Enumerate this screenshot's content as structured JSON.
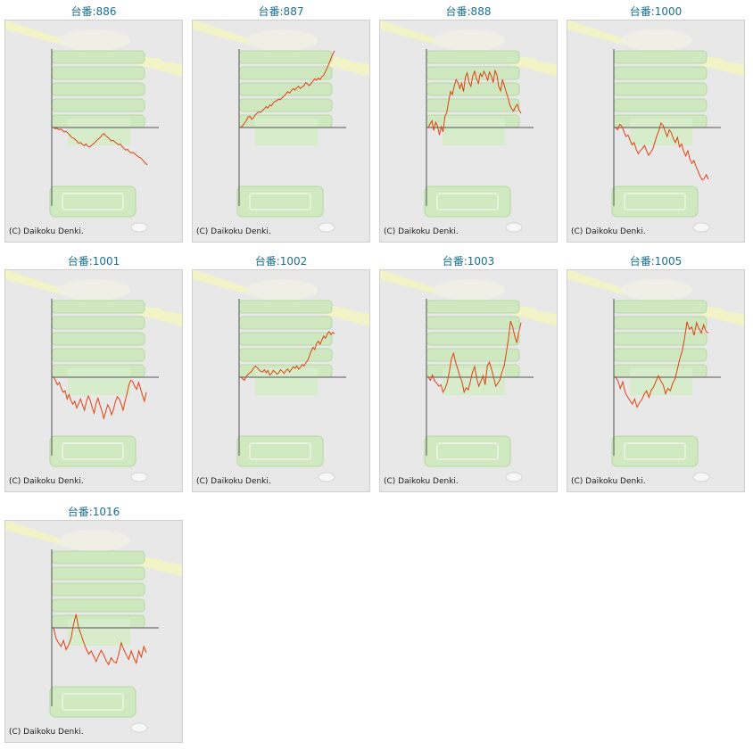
{
  "graphs": [
    {
      "title": "台番:886",
      "copyright": "(C) Daikoku Denki.",
      "series": [
        0,
        -3,
        -2,
        -6,
        -4,
        -8,
        -12,
        -10,
        -15,
        -20,
        -26,
        -28,
        -32,
        -37,
        -42,
        -40,
        -45,
        -48,
        -44,
        -50,
        -52,
        -48,
        -44,
        -40,
        -34,
        -30,
        -26,
        -20,
        -16,
        -22,
        -26,
        -30,
        -36,
        -34,
        -38,
        -42,
        -46,
        -44,
        -50,
        -56,
        -60,
        -58,
        -64,
        -68,
        -66,
        -70,
        -74,
        -78,
        -80,
        -84,
        -90,
        -95,
        -100
      ]
    },
    {
      "title": "台番:887",
      "copyright": "(C) Daikoku Denki.",
      "series": [
        0,
        5,
        12,
        18,
        28,
        30,
        22,
        26,
        34,
        38,
        42,
        40,
        46,
        50,
        56,
        52,
        60,
        58,
        66,
        70,
        72,
        76,
        74,
        80,
        84,
        90,
        96,
        92,
        98,
        104,
        100,
        106,
        110,
        104,
        108,
        112,
        120,
        116,
        112,
        118,
        124,
        130,
        126,
        132,
        128,
        136,
        140,
        150,
        160,
        172,
        185,
        196,
        205
      ]
    },
    {
      "title": "台番:888",
      "copyright": "(C) Daikoku Denki.",
      "series": [
        0,
        10,
        18,
        -8,
        14,
        4,
        -20,
        2,
        -12,
        30,
        40,
        70,
        96,
        88,
        110,
        128,
        120,
        104,
        118,
        96,
        134,
        146,
        120,
        110,
        138,
        150,
        130,
        118,
        144,
        136,
        150,
        140,
        126,
        148,
        138,
        120,
        152,
        140,
        110,
        98,
        128,
        112,
        94,
        80,
        60,
        50,
        44,
        56,
        62,
        46,
        38
      ]
    },
    {
      "title": "台番:1000",
      "copyright": "(C) Daikoku Denki.",
      "series": [
        0,
        -6,
        8,
        4,
        -10,
        -24,
        -20,
        -34,
        -46,
        -40,
        -58,
        -70,
        -62,
        -56,
        -48,
        -62,
        -74,
        -66,
        -58,
        -40,
        -22,
        -8,
        12,
        6,
        -10,
        -24,
        -6,
        -14,
        -30,
        -40,
        -26,
        -52,
        -44,
        -64,
        -76,
        -62,
        -84,
        -96,
        -88,
        -104,
        -116,
        -130,
        -140,
        -136,
        -126,
        -138
      ]
    },
    {
      "title": "台番:1001",
      "copyright": "(C) Daikoku Denki.",
      "series": [
        0,
        -8,
        -20,
        -14,
        -30,
        -40,
        -36,
        -58,
        -46,
        -62,
        -72,
        -64,
        -82,
        -70,
        -58,
        -74,
        -88,
        -66,
        -50,
        -62,
        -80,
        -96,
        -70,
        -56,
        -74,
        -90,
        -110,
        -92,
        -74,
        -82,
        -100,
        -86,
        -66,
        -52,
        -58,
        -72,
        -88,
        -64,
        -44,
        -20,
        -8,
        -12,
        -24,
        -32,
        -14,
        -30,
        -48,
        -64,
        -40
      ]
    },
    {
      "title": "台番:1002",
      "copyright": "(C) Daikoku Denki.",
      "series": [
        0,
        -4,
        -8,
        2,
        8,
        12,
        16,
        24,
        30,
        26,
        20,
        16,
        14,
        20,
        12,
        18,
        6,
        10,
        18,
        14,
        8,
        12,
        20,
        16,
        10,
        18,
        22,
        14,
        20,
        28,
        24,
        30,
        22,
        26,
        34,
        30,
        38,
        44,
        56,
        70,
        80,
        74,
        90,
        96,
        88,
        100,
        110,
        104,
        116,
        122,
        114,
        120,
        116
      ]
    },
    {
      "title": "台番:1003",
      "copyright": "(C) Daikoku Denki.",
      "series": [
        0,
        -8,
        6,
        -10,
        -16,
        -24,
        -20,
        -40,
        -30,
        -14,
        14,
        50,
        64,
        40,
        22,
        2,
        -12,
        -40,
        -28,
        -34,
        -10,
        14,
        28,
        -4,
        -24,
        -10,
        4,
        -20,
        30,
        40,
        22,
        0,
        -24,
        -16,
        -6,
        14,
        30,
        66,
        100,
        150,
        136,
        110,
        92,
        122,
        146
      ]
    },
    {
      "title": "台番:1005",
      "copyright": "(C) Daikoku Denki.",
      "series": [
        0,
        -10,
        -30,
        -12,
        -40,
        -52,
        -62,
        -72,
        -58,
        -80,
        -68,
        -60,
        -46,
        -36,
        -54,
        -34,
        -26,
        -10,
        4,
        -10,
        -20,
        -44,
        -30,
        -36,
        -16,
        -4,
        22,
        50,
        70,
        104,
        148,
        128,
        134,
        112,
        146,
        130,
        118,
        140,
        122,
        118
      ]
    },
    {
      "title": "台番:1016",
      "copyright": "(C) Daikoku Denki.",
      "series": [
        0,
        -28,
        -40,
        -50,
        -34,
        -58,
        -46,
        -28,
        10,
        36,
        0,
        -18,
        -38,
        -56,
        -70,
        -62,
        -76,
        -90,
        -74,
        -60,
        -72,
        -88,
        -98,
        -80,
        -90,
        -94,
        -70,
        -40,
        -58,
        -72,
        -84,
        -62,
        -80,
        -94,
        -62,
        -78,
        -50,
        -66
      ]
    }
  ],
  "style": {
    "line_color": "#e04010",
    "axis_color": "#555555",
    "frame_bg": "#e8e8e8",
    "title_color": "#1a6f8f"
  }
}
